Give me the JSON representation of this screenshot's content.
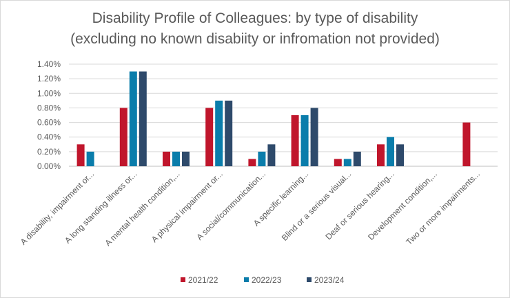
{
  "chart_data": {
    "type": "bar",
    "title_line1": "Disability Profile of Colleagues: by type of disability",
    "title_line2": "(excluding no known disabiity or infromation not provided)",
    "categories": [
      "A disability, impairment or...",
      "A long standing illness or...",
      "A mental health condition,...",
      "A physical impairment or...",
      "A social/communication...",
      "A specific learning...",
      "Blind or a serious visual...",
      "Deaf or serious hearing...",
      "Development condition,...",
      "Two or more impairments..."
    ],
    "series": [
      {
        "name": "2021/22",
        "color": "#c0162c",
        "values": [
          0.3,
          0.8,
          0.2,
          0.8,
          0.1,
          0.7,
          0.1,
          0.3,
          null,
          0.6
        ]
      },
      {
        "name": "2022/23",
        "color": "#0a7dab",
        "values": [
          0.2,
          1.3,
          0.2,
          0.9,
          0.2,
          0.7,
          0.1,
          0.4,
          null,
          null
        ]
      },
      {
        "name": "2023/24",
        "color": "#2e4a6b",
        "values": [
          null,
          1.3,
          0.2,
          0.9,
          0.3,
          0.8,
          0.2,
          0.3,
          null,
          null
        ]
      }
    ],
    "y_ticks": [
      "0.00%",
      "0.20%",
      "0.40%",
      "0.60%",
      "0.80%",
      "1.00%",
      "1.20%",
      "1.40%"
    ],
    "ylim": [
      0,
      1.4
    ],
    "xlabel": "",
    "ylabel": "",
    "legend_position": "bottom"
  }
}
